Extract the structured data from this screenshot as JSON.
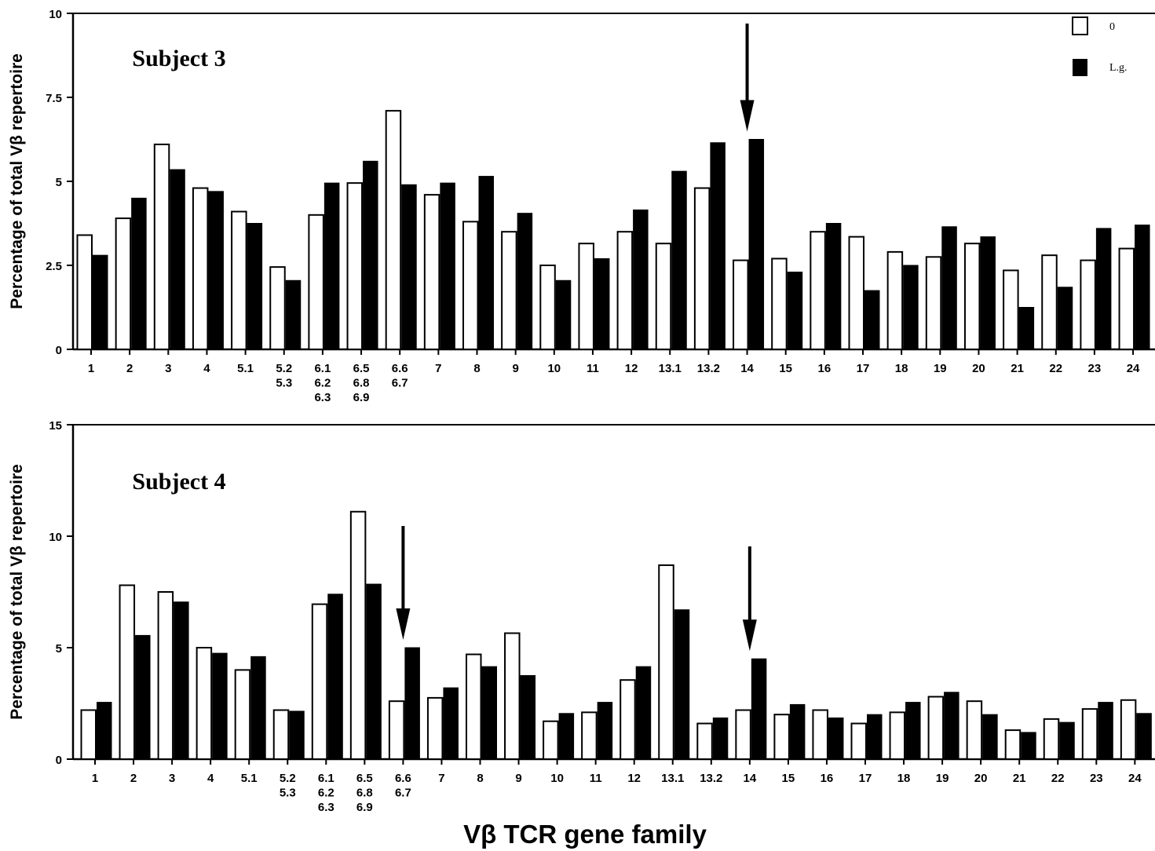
{
  "chart_data": [
    {
      "type": "bar",
      "title": "Subject 3",
      "ylabel": "Percentage of total Vβ repertoire",
      "xlabel": "",
      "ylim": [
        0,
        10
      ],
      "yticks": [
        "0",
        "2.5",
        "5",
        "7.5",
        "10"
      ],
      "categories": [
        "1",
        "2",
        "3",
        "4",
        "5.1",
        "5.2\n5.3",
        "6.1\n6.2\n6.3",
        "6.5\n6.8\n6.9",
        "6.6\n6.7",
        "7",
        "8",
        "9",
        "10",
        "11",
        "12",
        "13.1",
        "13.2",
        "14",
        "15",
        "16",
        "17",
        "18",
        "19",
        "20",
        "21",
        "22",
        "23",
        "24"
      ],
      "series": [
        {
          "name": "0",
          "color": "#ffffff",
          "values": [
            3.4,
            3.9,
            6.1,
            4.8,
            4.1,
            2.45,
            4.0,
            4.95,
            7.1,
            4.6,
            3.8,
            3.5,
            2.5,
            3.15,
            3.5,
            3.15,
            4.8,
            2.65,
            2.7,
            3.5,
            3.35,
            2.9,
            2.75,
            3.15,
            2.35,
            2.8,
            2.65,
            3.0
          ]
        },
        {
          "name": "L.g.",
          "color": "#000000",
          "values": [
            2.8,
            4.5,
            5.35,
            4.7,
            3.75,
            2.05,
            4.95,
            5.6,
            4.9,
            4.95,
            5.15,
            4.05,
            2.05,
            2.7,
            4.15,
            5.3,
            6.15,
            6.25,
            2.3,
            3.75,
            1.75,
            2.5,
            3.65,
            3.35,
            1.25,
            1.85,
            3.6,
            3.7
          ]
        }
      ],
      "arrows_at": [
        "14"
      ],
      "legend": "top-right",
      "grid": false
    },
    {
      "type": "bar",
      "title": "Subject 4",
      "ylabel": "Percentage of total Vβ repertoire",
      "xlabel": "Vβ TCR gene family",
      "ylim": [
        0,
        15
      ],
      "yticks": [
        "0",
        "5",
        "10",
        "15"
      ],
      "categories": [
        "1",
        "2",
        "3",
        "4",
        "5.1",
        "5.2\n5.3",
        "6.1\n6.2\n6.3",
        "6.5\n6.8\n6.9",
        "6.6\n6.7",
        "7",
        "8",
        "9",
        "10",
        "11",
        "12",
        "13.1",
        "13.2",
        "14",
        "15",
        "16",
        "17",
        "18",
        "19",
        "20",
        "21",
        "22",
        "23",
        "24"
      ],
      "series": [
        {
          "name": "0",
          "color": "#ffffff",
          "values": [
            2.2,
            7.8,
            7.5,
            5.0,
            4.0,
            2.2,
            6.95,
            11.1,
            2.6,
            2.75,
            4.7,
            5.65,
            1.7,
            2.1,
            3.55,
            8.7,
            1.6,
            2.2,
            2.0,
            2.2,
            1.6,
            2.1,
            2.8,
            2.6,
            1.3,
            1.8,
            2.25,
            2.65
          ]
        },
        {
          "name": "L.g.",
          "color": "#000000",
          "values": [
            2.55,
            5.55,
            7.05,
            4.75,
            4.6,
            2.15,
            7.4,
            7.85,
            5.0,
            3.2,
            4.15,
            3.75,
            2.05,
            2.55,
            4.15,
            6.7,
            1.85,
            4.5,
            2.45,
            1.85,
            2.0,
            2.55,
            3.0,
            2.0,
            1.2,
            1.65,
            2.55,
            2.05
          ]
        }
      ],
      "arrows_at": [
        "6.6\n6.7",
        "14"
      ],
      "legend": "none",
      "grid": false
    }
  ]
}
